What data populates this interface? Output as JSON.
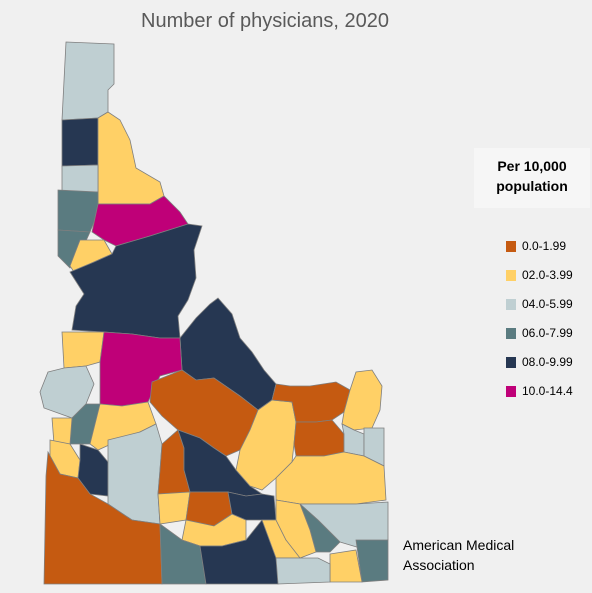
{
  "title": "Number of physicians, 2020",
  "legend": {
    "title_line1": "Per 10,000",
    "title_line2": "population",
    "items": [
      {
        "label": "0.0-1.99",
        "color": "#c55a11"
      },
      {
        "label": "02.0-3.99",
        "color": "#ffd066"
      },
      {
        "label": "04.0-5.99",
        "color": "#bfcfd2"
      },
      {
        "label": "06.0-7.99",
        "color": "#5a7b80"
      },
      {
        "label": "08.0-9.99",
        "color": "#263752"
      },
      {
        "label": "10.0-14.4",
        "color": "#bf0078"
      }
    ]
  },
  "source_line1": "American Medical",
  "source_line2": "Association"
}
